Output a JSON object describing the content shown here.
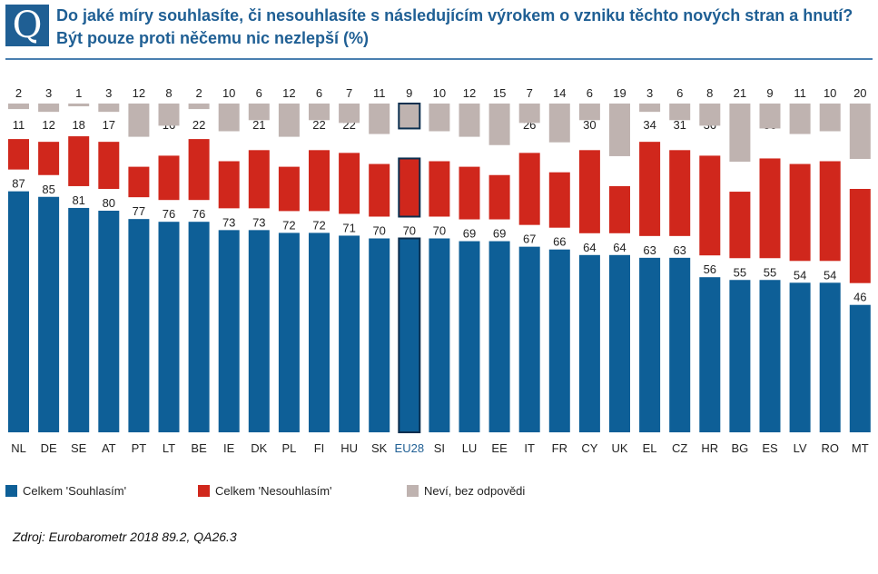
{
  "badge": "Q",
  "title": {
    "line1": "Do jaké míry souhlasíte, či nesouhlasíte s následujícím výrokem o vzniku těchto nových stran a hnutí?",
    "line2": "Být pouze proti něčemu nic nezlepší (%)"
  },
  "colors": {
    "agree": "#0e5f97",
    "disagree": "#d0271c",
    "dontknow": "#bfb3b0",
    "highlight_outline": "#0b2f4f",
    "text": "#222222",
    "eu_label": "#1f5f94"
  },
  "legend": {
    "agree": "Celkem 'Souhlasím'",
    "disagree": "Celkem 'Nesouhlasím'",
    "dontknow": "Neví, bez odpovědi"
  },
  "source": "Zdroj: Eurobarometr  2018 89.2, QA26.3",
  "chart_data": {
    "type": "bar",
    "stacked": true,
    "highlight": "EU28",
    "categories": [
      "NL",
      "DE",
      "SE",
      "AT",
      "PT",
      "LT",
      "BE",
      "IE",
      "DK",
      "PL",
      "FI",
      "HU",
      "SK",
      "EU28",
      "SI",
      "LU",
      "EE",
      "IT",
      "FR",
      "CY",
      "UK",
      "EL",
      "CZ",
      "HR",
      "BG",
      "ES",
      "LV",
      "RO",
      "MT"
    ],
    "series": [
      {
        "name": "Celkem 'Souhlasím'",
        "values": [
          87,
          85,
          81,
          80,
          77,
          76,
          76,
          73,
          73,
          72,
          72,
          71,
          70,
          70,
          70,
          69,
          69,
          67,
          66,
          64,
          64,
          63,
          63,
          56,
          55,
          55,
          54,
          54,
          46
        ]
      },
      {
        "name": "Celkem 'Nesouhlasím'",
        "values": [
          11,
          12,
          18,
          17,
          11,
          16,
          22,
          17,
          21,
          16,
          22,
          22,
          19,
          21,
          20,
          19,
          16,
          26,
          20,
          30,
          17,
          34,
          31,
          36,
          24,
          36,
          35,
          36,
          34
        ]
      },
      {
        "name": "Neví, bez odpovědi",
        "values": [
          2,
          3,
          1,
          3,
          12,
          8,
          2,
          10,
          6,
          12,
          6,
          7,
          11,
          9,
          10,
          12,
          15,
          7,
          14,
          6,
          19,
          3,
          6,
          8,
          21,
          9,
          11,
          10,
          20
        ]
      }
    ],
    "ylim": [
      0,
      100
    ]
  }
}
